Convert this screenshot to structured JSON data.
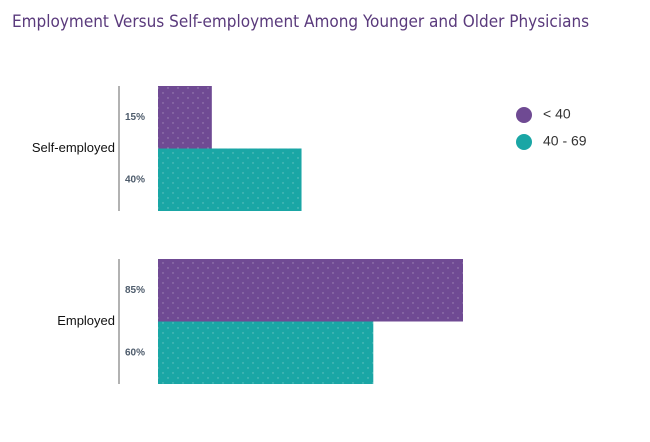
{
  "chart_data": {
    "type": "bar",
    "orientation": "horizontal",
    "title": "Employment Versus Self-employment Among Younger and Older Physicians",
    "categories": [
      "Self-employed",
      "Employed"
    ],
    "series": [
      {
        "name": "< 40",
        "color": "#6f4a93",
        "values": [
          15,
          85
        ],
        "value_labels": [
          "15%",
          "85%"
        ]
      },
      {
        "name": "40 - 69",
        "color": "#1aa6a5",
        "values": [
          40,
          60
        ],
        "value_labels": [
          "40%",
          "60%"
        ]
      }
    ],
    "legend": "upper right"
  }
}
